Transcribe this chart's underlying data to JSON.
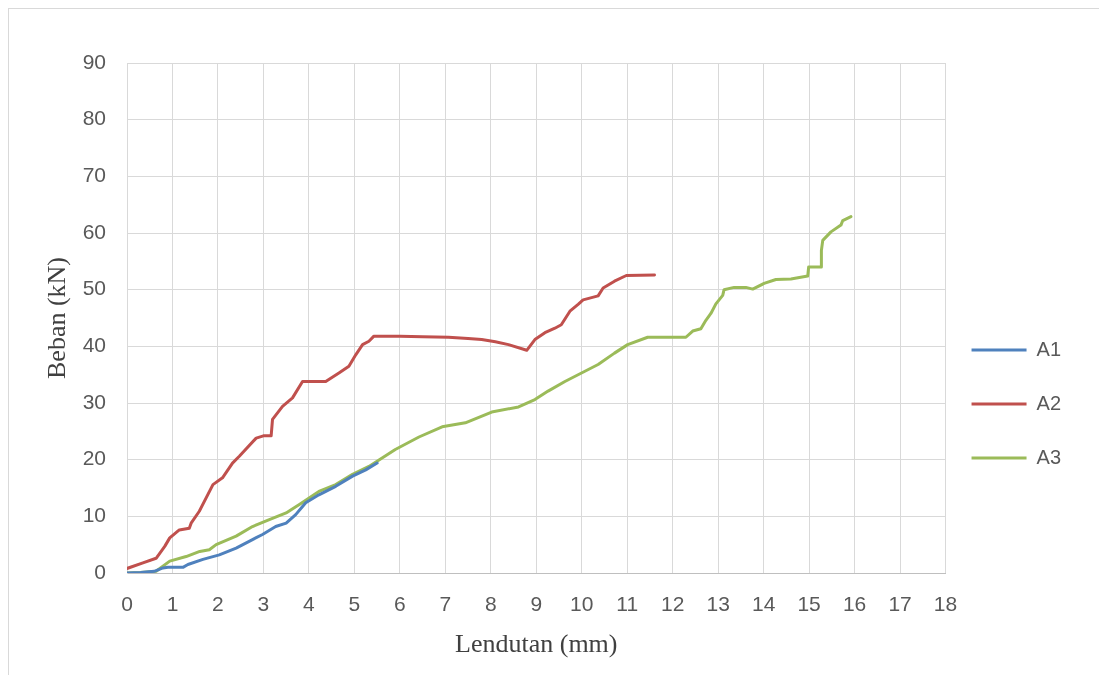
{
  "chart_data": {
    "type": "line",
    "xlabel": "Lendutan (mm)",
    "ylabel": "Beban (kN)",
    "xlim": [
      0,
      18
    ],
    "xticks": [
      0,
      1,
      2,
      3,
      4,
      5,
      6,
      7,
      8,
      9,
      10,
      11,
      12,
      13,
      14,
      15,
      16,
      17,
      18
    ],
    "ylim": [
      0,
      90
    ],
    "yticks": [
      0,
      10,
      20,
      30,
      40,
      50,
      60,
      70,
      80,
      90
    ],
    "grid": true,
    "legend": "right",
    "marker": "none",
    "line_style": "solid",
    "series": [
      {
        "name": "A1",
        "color": "#4f81bd",
        "x": [
          0,
          0.3,
          0.6,
          0.79,
          0.9,
          1.23,
          1.34,
          1.67,
          2.03,
          2.4,
          2.76,
          2.98,
          3.27,
          3.5,
          3.71,
          3.93,
          4.22,
          4.59,
          4.96,
          5.25,
          5.5
        ],
        "values": [
          0,
          0.1,
          0.3,
          0.9,
          1.0,
          1.0,
          1.5,
          2.4,
          3.2,
          4.4,
          5.9,
          6.8,
          8.2,
          8.8,
          10.3,
          12.4,
          13.8,
          15.3,
          17.1,
          18.2,
          19.4
        ]
      },
      {
        "name": "A2",
        "color": "#c0504d",
        "x": [
          0,
          0.35,
          0.64,
          0.83,
          0.94,
          1.15,
          1.37,
          1.41,
          1.59,
          1.89,
          2.1,
          2.32,
          2.47,
          2.84,
          3.0,
          3.17,
          3.2,
          3.42,
          3.64,
          3.86,
          4.37,
          4.66,
          4.88,
          5.03,
          5.18,
          5.32,
          5.43,
          6.0,
          6.5,
          7.07,
          7.5,
          7.8,
          8.1,
          8.39,
          8.79,
          8.97,
          9.19,
          9.41,
          9.55,
          9.74,
          9.92,
          10.03,
          10.36,
          10.47,
          10.72,
          10.98,
          11.6
        ],
        "values": [
          0.8,
          1.8,
          2.6,
          4.7,
          6.2,
          7.6,
          7.9,
          8.8,
          10.9,
          15.6,
          16.8,
          19.4,
          20.6,
          23.8,
          24.2,
          24.2,
          27.1,
          29.4,
          30.9,
          33.8,
          33.8,
          35.3,
          36.5,
          38.5,
          40.3,
          40.9,
          41.8,
          41.8,
          41.7,
          41.6,
          41.4,
          41.2,
          40.8,
          40.3,
          39.3,
          41.2,
          42.4,
          43.2,
          43.8,
          46.2,
          47.4,
          48.2,
          48.9,
          50.3,
          51.5,
          52.5,
          52.6
        ]
      },
      {
        "name": "A3",
        "color": "#9bbb59",
        "x": [
          0,
          0.3,
          0.64,
          0.94,
          1.3,
          1.6,
          1.81,
          1.96,
          2.4,
          2.76,
          3.13,
          3.5,
          3.79,
          4.22,
          4.59,
          4.96,
          5.32,
          5.61,
          5.9,
          6.42,
          6.93,
          7.44,
          8.02,
          8.61,
          8.97,
          9.26,
          9.63,
          10.07,
          10.36,
          10.72,
          11.01,
          11.45,
          12.29,
          12.44,
          12.62,
          12.73,
          12.84,
          12.95,
          13.1,
          13.13,
          13.35,
          13.61,
          13.76,
          14.01,
          14.27,
          14.6,
          14.97,
          14.99,
          15.27,
          15.27,
          15.3,
          15.48,
          15.7,
          15.74,
          15.92
        ],
        "values": [
          0,
          0.1,
          0.3,
          2.1,
          2.9,
          3.8,
          4.1,
          5.0,
          6.5,
          8.2,
          9.4,
          10.6,
          12.1,
          14.4,
          15.6,
          17.4,
          18.8,
          20.3,
          21.8,
          24.0,
          25.8,
          26.5,
          28.4,
          29.3,
          30.6,
          32.1,
          33.8,
          35.6,
          36.8,
          38.8,
          40.3,
          41.6,
          41.6,
          42.7,
          43.1,
          44.6,
          45.8,
          47.5,
          49.0,
          50.0,
          50.4,
          50.4,
          50.1,
          51.1,
          51.8,
          51.9,
          52.4,
          54.0,
          54.0,
          56.9,
          58.7,
          60.2,
          61.4,
          62.2,
          62.9
        ]
      }
    ]
  }
}
